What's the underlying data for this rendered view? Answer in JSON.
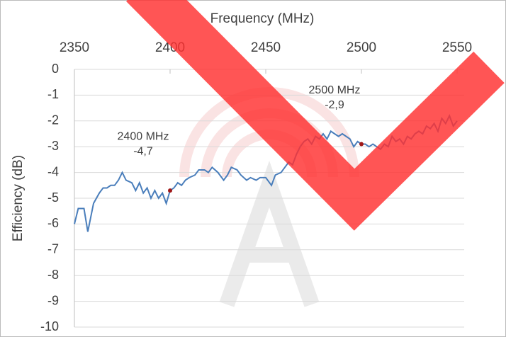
{
  "chart_data": {
    "type": "line",
    "title": "Frequency (MHz)",
    "y_label": "Efficiency (dB)",
    "x": [
      2350,
      2352,
      2355,
      2357,
      2360,
      2363,
      2365,
      2367,
      2369,
      2371,
      2373,
      2375,
      2377,
      2380,
      2382,
      2384,
      2386,
      2388,
      2390,
      2392,
      2394,
      2396,
      2398,
      2400,
      2402,
      2404,
      2406,
      2408,
      2410,
      2413,
      2415,
      2418,
      2420,
      2422,
      2425,
      2428,
      2430,
      2432,
      2435,
      2437,
      2440,
      2442,
      2445,
      2447,
      2450,
      2452,
      2453,
      2455,
      2458,
      2460,
      2462,
      2464,
      2466,
      2468,
      2470,
      2472,
      2474,
      2476,
      2478,
      2480,
      2482,
      2484,
      2486,
      2488,
      2490,
      2492,
      2494,
      2496,
      2498,
      2500,
      2502,
      2504,
      2506,
      2508,
      2510,
      2512,
      2514,
      2516,
      2518,
      2520,
      2522,
      2524,
      2526,
      2528,
      2530,
      2532,
      2534,
      2536,
      2538,
      2540,
      2542,
      2544,
      2546,
      2548,
      2550
    ],
    "series": [
      {
        "name": "Efficiency",
        "color": "#4a7ebb",
        "values": [
          -6.0,
          -5.4,
          -5.4,
          -6.3,
          -5.2,
          -4.8,
          -4.6,
          -4.6,
          -4.5,
          -4.5,
          -4.3,
          -4.0,
          -4.3,
          -4.4,
          -4.7,
          -4.4,
          -4.8,
          -4.6,
          -5.0,
          -4.7,
          -5.0,
          -4.8,
          -5.2,
          -4.7,
          -4.6,
          -4.4,
          -4.5,
          -4.3,
          -4.2,
          -4.1,
          -3.9,
          -3.9,
          -4.0,
          -3.8,
          -4.0,
          -4.3,
          -4.1,
          -3.8,
          -3.9,
          -4.1,
          -4.3,
          -4.2,
          -4.3,
          -4.2,
          -4.2,
          -4.4,
          -4.5,
          -4.1,
          -4.0,
          -3.8,
          -3.6,
          -3.7,
          -3.3,
          -3.0,
          -2.8,
          -2.7,
          -2.9,
          -2.6,
          -2.7,
          -2.5,
          -2.7,
          -2.4,
          -2.5,
          -2.6,
          -2.5,
          -2.6,
          -2.7,
          -3.0,
          -2.8,
          -2.9,
          -2.9,
          -3.0,
          -2.9,
          -3.0,
          -3.1,
          -2.9,
          -3.0,
          -2.6,
          -2.8,
          -2.7,
          -2.9,
          -2.6,
          -2.7,
          -2.5,
          -2.4,
          -2.5,
          -2.2,
          -2.3,
          -2.1,
          -2.4,
          -1.9,
          -2.1,
          -1.8,
          -2.2,
          -2.0
        ]
      }
    ],
    "annotations": [
      {
        "x": 2400,
        "y": -4.7,
        "label": "2400 MHz",
        "value_label": "-4,7"
      },
      {
        "x": 2500,
        "y": -2.9,
        "label": "2500 MHz",
        "value_label": "-2,9"
      }
    ],
    "xlim": [
      2350,
      2550
    ],
    "xticks": [
      2350,
      2400,
      2450,
      2500,
      2550
    ],
    "ylim": [
      -10,
      0
    ],
    "yticks": [
      0,
      -1,
      -2,
      -3,
      -4,
      -5,
      -6,
      -7,
      -8,
      -9,
      -10
    ],
    "grid": true
  }
}
